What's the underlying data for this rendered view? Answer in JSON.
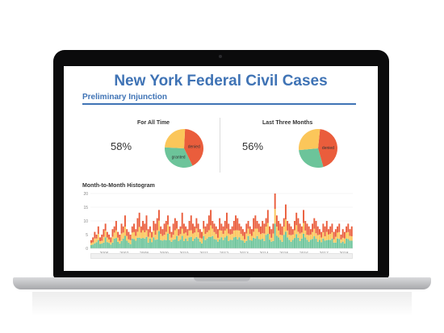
{
  "page": {
    "title": "New York Federal Civil Cases",
    "subtitle": "Preliminary Injunction"
  },
  "colors": {
    "title": "#3f73b5",
    "denied": "#ea5d3c",
    "granted": "#6cc49a",
    "other": "#fbc65a",
    "bezel": "#0b0b0c"
  },
  "panels": [
    {
      "label": "For All Time",
      "percent": "58%",
      "slices": [
        {
          "name": "denied",
          "share": 0.42,
          "color": "#ea5d3c",
          "label": "denied"
        },
        {
          "name": "granted",
          "share": 0.33,
          "color": "#6cc49a",
          "label": "granted"
        },
        {
          "name": "other",
          "share": 0.25,
          "color": "#fbc65a",
          "label": ""
        }
      ]
    },
    {
      "label": "Last Three Months",
      "percent": "56%",
      "slices": [
        {
          "name": "denied",
          "share": 0.44,
          "color": "#ea5d3c",
          "label": "denied"
        },
        {
          "name": "granted",
          "share": 0.28,
          "color": "#6cc49a",
          "label": ""
        },
        {
          "name": "other",
          "share": 0.28,
          "color": "#fbc65a",
          "label": ""
        }
      ]
    }
  ],
  "histogram": {
    "title": "Month-to-Month Histogram",
    "y_ticks": [
      "0",
      "5",
      "10",
      "15",
      "20"
    ],
    "x_ticks": [
      "2006",
      "2007",
      "2008",
      "2009",
      "2010",
      "2011",
      "2012",
      "2013",
      "2014",
      "2015",
      "2016",
      "2017",
      "2018"
    ]
  },
  "chart_data": {
    "type": "bar",
    "title": "Month-to-Month Histogram",
    "ylim": [
      0,
      20
    ],
    "y_ticks": [
      0,
      5,
      10,
      15,
      20
    ],
    "x_ticks": [
      "2006",
      "2007",
      "2008",
      "2009",
      "2010",
      "2011",
      "2012",
      "2013",
      "2014",
      "2015",
      "2016",
      "2017",
      "2018"
    ],
    "stacked": true,
    "monthly_totals": [
      3,
      4,
      6,
      5,
      8,
      4,
      5,
      7,
      9,
      6,
      5,
      4,
      7,
      8,
      10,
      6,
      5,
      9,
      8,
      12,
      7,
      6,
      5,
      8,
      9,
      7,
      11,
      13,
      8,
      10,
      9,
      12,
      7,
      8,
      6,
      10,
      9,
      11,
      14,
      8,
      7,
      9,
      10,
      12,
      8,
      6,
      9,
      11,
      10,
      7,
      8,
      13,
      9,
      8,
      7,
      10,
      12,
      9,
      8,
      11,
      9,
      7,
      6,
      10,
      8,
      9,
      12,
      14,
      10,
      9,
      8,
      7,
      11,
      9,
      8,
      10,
      13,
      9,
      7,
      8,
      10,
      12,
      11,
      9,
      8,
      7,
      6,
      9,
      10,
      8,
      7,
      11,
      12,
      10,
      9,
      8,
      10,
      9,
      11,
      14,
      8,
      7,
      9,
      20,
      12,
      10,
      9,
      8,
      11,
      16,
      10,
      9,
      8,
      7,
      10,
      13,
      11,
      9,
      8,
      14,
      10,
      9,
      8,
      7,
      9,
      11,
      10,
      8,
      7,
      6,
      9,
      8,
      10,
      7,
      8,
      9,
      6,
      7,
      8,
      9,
      5,
      7,
      6,
      8,
      9,
      7,
      8
    ]
  }
}
